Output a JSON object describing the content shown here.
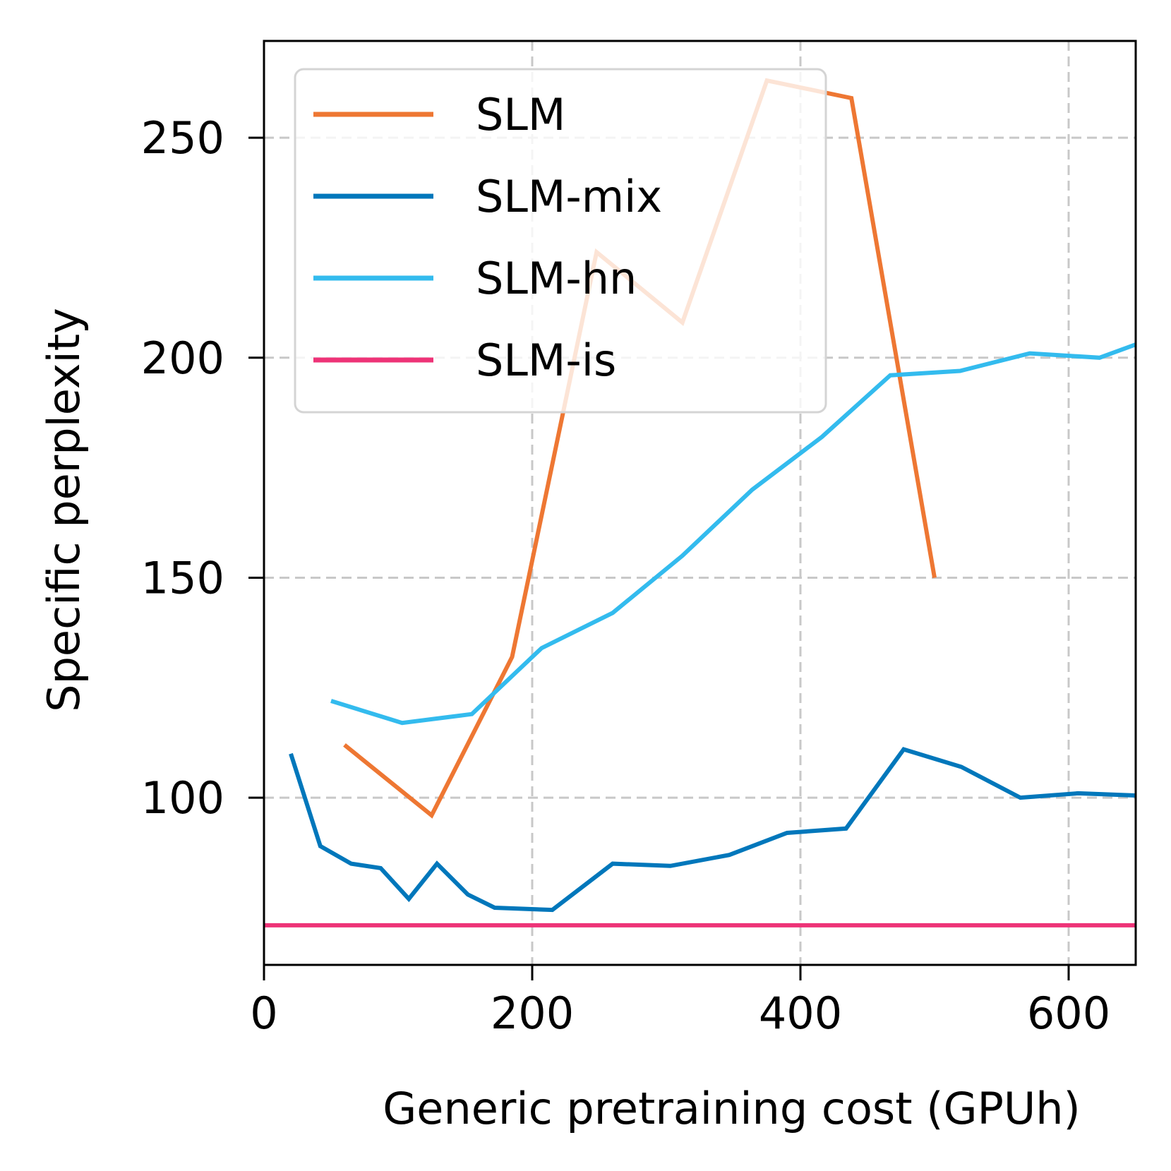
{
  "chart_data": {
    "type": "line",
    "xlabel": "Generic pretraining cost (GPUh)",
    "ylabel": "Specific perplexity",
    "xlim": [
      0,
      650
    ],
    "ylim": [
      62,
      272
    ],
    "xticks": [
      0,
      200,
      400,
      600
    ],
    "yticks": [
      100,
      150,
      200,
      250
    ],
    "grid": true,
    "legend_position": "upper-left",
    "series": [
      {
        "name": "SLM",
        "color": "#ee7733",
        "x": [
          60,
          125,
          185,
          248,
          312,
          375,
          438,
          500
        ],
        "y": [
          112,
          96,
          132,
          224,
          208,
          263,
          259,
          150
        ]
      },
      {
        "name": "SLM-mix",
        "color": "#0077bb",
        "x": [
          20,
          42,
          65,
          87,
          108,
          129,
          152,
          172,
          215,
          260,
          303,
          347,
          390,
          434,
          477,
          520,
          564,
          607,
          650
        ],
        "y": [
          110,
          89,
          85,
          84,
          77,
          85,
          78,
          75,
          74.5,
          85,
          84.5,
          87,
          92,
          93,
          111,
          107,
          100,
          101,
          100.5
        ]
      },
      {
        "name": "SLM-hn",
        "color": "#33bbee",
        "x": [
          50,
          103,
          155,
          207,
          260,
          312,
          364,
          416,
          467,
          519,
          571,
          623,
          650
        ],
        "y": [
          122,
          117,
          119,
          134,
          142,
          155,
          170,
          182,
          196,
          197,
          201,
          200,
          203
        ]
      },
      {
        "name": "SLM-is",
        "color": "#ee3377",
        "x": [
          0,
          650
        ],
        "y": [
          71,
          71
        ]
      }
    ]
  }
}
